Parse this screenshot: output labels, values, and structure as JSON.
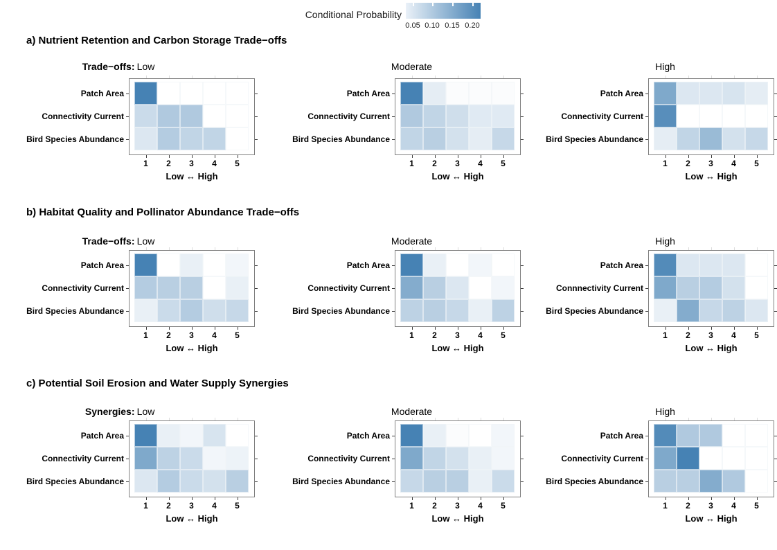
{
  "chart_data": {
    "type": "heatmap",
    "legend_title": "Conditional Probability",
    "colorbar_tick_labels": [
      "0.05",
      "0.10",
      "0.15",
      "0.20"
    ],
    "colorbar_tick_values": [
      0.05,
      0.1,
      0.15,
      0.2
    ],
    "color_scale": {
      "low_color": "#FFFFFF",
      "high_color": "#4682B4",
      "domain_min": 0.005,
      "domain_max": 0.215
    },
    "x_categories": [
      "1",
      "2",
      "3",
      "4",
      "5"
    ],
    "x_axis_label": "Low ↔ High",
    "y_categories": [
      "Patch Area",
      "Connectivity Current",
      "Bird Species Abundance"
    ],
    "legend_position": "top",
    "grid": "off",
    "sections": [
      {
        "id": "a",
        "title": "a) Nutrient Retention and Carbon Storage Trade−offs",
        "strip_prefix": "Trade−offs:",
        "facets": [
          {
            "label": "Low",
            "row_labels": [
              "Patch Area",
              "Connectivity Current",
              "Bird Species Abundance"
            ],
            "values": [
              [
                0.23,
                0,
                0,
                0,
                0
              ],
              [
                0.065,
                0.095,
                0.095,
                0,
                0
              ],
              [
                0.045,
                0.09,
                0.075,
                0.075,
                0
              ]
            ]
          },
          {
            "label": "Moderate",
            "row_labels": [
              "Patch Area",
              "Connectivity Current",
              "Bird Species Abundance"
            ],
            "values": [
              [
                0.22,
                0.035,
                0.01,
                0.01,
                0.01
              ],
              [
                0.095,
                0.075,
                0.06,
                0.04,
                0.04
              ],
              [
                0.075,
                0.085,
                0.055,
                0.035,
                0.07
              ]
            ]
          },
          {
            "label": "High",
            "row_labels": [
              "Patch Area",
              "Connectivity Current",
              "Bird Species Abundance"
            ],
            "values": [
              [
                0.15,
                0.045,
                0.045,
                0.05,
                0.035
              ],
              [
                0.195,
                0,
                0,
                0,
                0
              ],
              [
                0.035,
                0.075,
                0.12,
                0.055,
                0.07
              ]
            ]
          }
        ]
      },
      {
        "id": "b",
        "title": "b) Habitat Quality and Pollinator Abundance Trade−offs",
        "strip_prefix": "Trade−offs:",
        "facets": [
          {
            "label": "Low",
            "row_labels": [
              "Patch Area",
              "Connectivity Current",
              "Bird Species Abundance"
            ],
            "values": [
              [
                0.22,
                0,
                0.03,
                0,
                0.02
              ],
              [
                0.09,
                0.085,
                0.085,
                0,
                0.03
              ],
              [
                0.03,
                0.065,
                0.09,
                0.06,
                0.07
              ]
            ]
          },
          {
            "label": "Moderate",
            "row_labels": [
              "Patch Area",
              "Connectivity Current",
              "Bird Species Abundance"
            ],
            "values": [
              [
                0.22,
                0.03,
                0.005,
                0.02,
                0.005
              ],
              [
                0.145,
                0.085,
                0.045,
                0.005,
                0.02
              ],
              [
                0.08,
                0.085,
                0.07,
                0.03,
                0.08
              ]
            ]
          },
          {
            "label": "High",
            "row_labels": [
              "Patch Area",
              "Connnectivity Current",
              "Bird Species Abundance"
            ],
            "values": [
              [
                0.2,
                0.045,
                0.045,
                0.045,
                0
              ],
              [
                0.15,
                0.085,
                0.09,
                0.055,
                0
              ],
              [
                0.03,
                0.145,
                0.07,
                0.08,
                0.045
              ]
            ]
          }
        ]
      },
      {
        "id": "c",
        "title": "c) Potential Soil Erosion and Water Supply Synergies",
        "strip_prefix": "Synergies:",
        "facets": [
          {
            "label": "Low",
            "row_labels": [
              "Patch Area",
              "Connectivity Current",
              "Bird Species Abundance"
            ],
            "values": [
              [
                0.22,
                0.03,
                0.02,
                0.05,
                0
              ],
              [
                0.15,
                0.08,
                0.065,
                0.02,
                0.025
              ],
              [
                0.045,
                0.09,
                0.065,
                0.055,
                0.085
              ]
            ]
          },
          {
            "label": "Moderate",
            "row_labels": [
              "Patch Area",
              "Connectivity Current",
              "Bird Species Abundance"
            ],
            "values": [
              [
                0.22,
                0.03,
                0.01,
                0.005,
                0.02
              ],
              [
                0.15,
                0.075,
                0.055,
                0.03,
                0.02
              ],
              [
                0.07,
                0.085,
                0.085,
                0.03,
                0.065
              ]
            ]
          },
          {
            "label": "High",
            "row_labels": [
              "Patch Area",
              "Connectivity Current",
              "Bird Species Abundance"
            ],
            "values": [
              [
                0.2,
                0.095,
                0.095,
                0,
                0
              ],
              [
                0.15,
                0.215,
                0,
                0,
                0
              ],
              [
                0.085,
                0.085,
                0.145,
                0.095,
                0
              ]
            ]
          }
        ]
      }
    ]
  }
}
